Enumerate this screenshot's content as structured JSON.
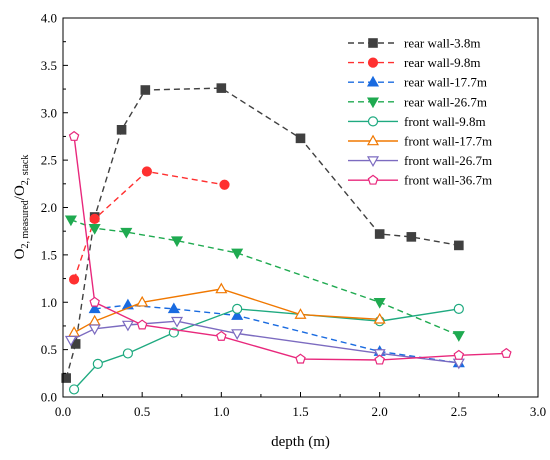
{
  "chart_data": {
    "type": "line",
    "title": "",
    "xlabel": "depth (m)",
    "ylabel": {
      "base": "O",
      "sub1": "2, measured",
      "slash": "/O",
      "sub2": "2, stack"
    },
    "xlim": [
      0,
      3.0
    ],
    "ylim": [
      0,
      4.0
    ],
    "xticks": [
      "0.0",
      "0.5",
      "1.0",
      "1.5",
      "2.0",
      "2.5",
      "3.0"
    ],
    "yticks": [
      "0.0",
      "0.5",
      "1.0",
      "1.5",
      "2.0",
      "2.5",
      "3.0",
      "3.5",
      "4.0"
    ],
    "grid": false,
    "legend_position": "top-right",
    "series": [
      {
        "name": "rear wall-3.8m",
        "color": "#404040",
        "dash": "dashed",
        "marker": "square",
        "filled": true,
        "x": [
          0.02,
          0.08,
          0.2,
          0.37,
          0.52,
          1.0,
          1.5,
          2.0,
          2.2,
          2.5
        ],
        "y": [
          0.2,
          0.56,
          1.9,
          2.82,
          3.24,
          3.26,
          2.73,
          1.72,
          1.69,
          1.6
        ]
      },
      {
        "name": "rear wall-9.8m",
        "color": "#ff3030",
        "dash": "dashed",
        "marker": "circle",
        "filled": true,
        "x": [
          0.07,
          0.2,
          0.53,
          1.02
        ],
        "y": [
          1.24,
          1.88,
          2.38,
          2.24
        ]
      },
      {
        "name": "rear wall-17.7m",
        "color": "#1a6be0",
        "dash": "dashed",
        "marker": "triangle-up",
        "filled": true,
        "x": [
          0.2,
          0.41,
          0.7,
          1.1,
          2.0,
          2.5
        ],
        "y": [
          0.93,
          0.97,
          0.93,
          0.86,
          0.48,
          0.36
        ]
      },
      {
        "name": "rear wall-26.7m",
        "color": "#1faa50",
        "dash": "dashed",
        "marker": "triangle-down",
        "filled": true,
        "x": [
          0.05,
          0.2,
          0.4,
          0.72,
          1.1,
          2.0,
          2.5
        ],
        "y": [
          1.87,
          1.78,
          1.74,
          1.65,
          1.52,
          1.0,
          0.65
        ]
      },
      {
        "name": "front wall-9.8m",
        "color": "#1faa80",
        "dash": "solid",
        "marker": "circle",
        "filled": false,
        "x": [
          0.07,
          0.22,
          0.41,
          0.7,
          1.1,
          2.0,
          2.5
        ],
        "y": [
          0.08,
          0.35,
          0.46,
          0.68,
          0.93,
          0.8,
          0.93
        ]
      },
      {
        "name": "front wall-17.7m",
        "color": "#f07800",
        "dash": "solid",
        "marker": "triangle-up",
        "filled": false,
        "x": [
          0.07,
          0.2,
          0.5,
          1.0,
          1.5,
          2.0
        ],
        "y": [
          0.68,
          0.8,
          1.0,
          1.14,
          0.87,
          0.82
        ]
      },
      {
        "name": "front wall-26.7m",
        "color": "#7c6bc0",
        "dash": "solid",
        "marker": "triangle-down",
        "filled": false,
        "x": [
          0.05,
          0.2,
          0.41,
          0.72,
          1.1,
          2.0,
          2.5
        ],
        "y": [
          0.6,
          0.72,
          0.76,
          0.8,
          0.67,
          0.46,
          0.36
        ]
      },
      {
        "name": "front wall-36.7m",
        "color": "#e8287c",
        "dash": "solid",
        "marker": "pentagon",
        "filled": false,
        "x": [
          0.07,
          0.2,
          0.5,
          1.0,
          1.5,
          2.0,
          2.5,
          2.8
        ],
        "y": [
          2.75,
          1.0,
          0.76,
          0.64,
          0.4,
          0.39,
          0.44,
          0.46
        ]
      }
    ]
  }
}
